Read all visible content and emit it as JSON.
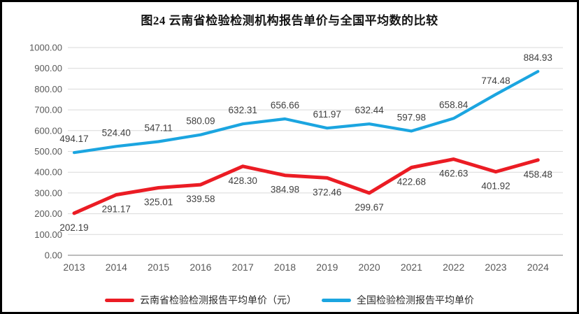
{
  "chart_data": {
    "type": "line",
    "title": "图24 云南省检验检测机构报告单价与全国平均数的比较",
    "categories": [
      "2013",
      "2014",
      "2015",
      "2016",
      "2017",
      "2018",
      "2019",
      "2020",
      "2021",
      "2022",
      "2023",
      "2024"
    ],
    "series": [
      {
        "name": "云南省检验检测报告平均单价（元）",
        "color": "#EB1C24",
        "label_position": "below",
        "values": [
          202.19,
          291.17,
          325.01,
          339.58,
          428.3,
          384.98,
          372.46,
          299.67,
          422.68,
          462.63,
          401.92,
          458.48
        ]
      },
      {
        "name": "全国检验检测报告平均单价",
        "color": "#1BA5E0",
        "label_position": "above",
        "values": [
          494.17,
          524.4,
          547.11,
          580.09,
          632.31,
          656.66,
          611.97,
          632.44,
          597.98,
          658.84,
          774.48,
          884.93
        ]
      }
    ],
    "ylim": [
      0,
      1000
    ],
    "y_step": 100,
    "y_tick_decimals": 2,
    "data_label_decimals": 2,
    "grid": true,
    "legend_position": "bottom"
  },
  "colors": {
    "gridline": "#D9D9D9",
    "axis_line": "#A6A6A6",
    "axis_text": "#595959",
    "data_label_text": "#3F3F3F",
    "title_text": "#141414",
    "frame_border": "#000000",
    "background": "#FFFFFF"
  }
}
